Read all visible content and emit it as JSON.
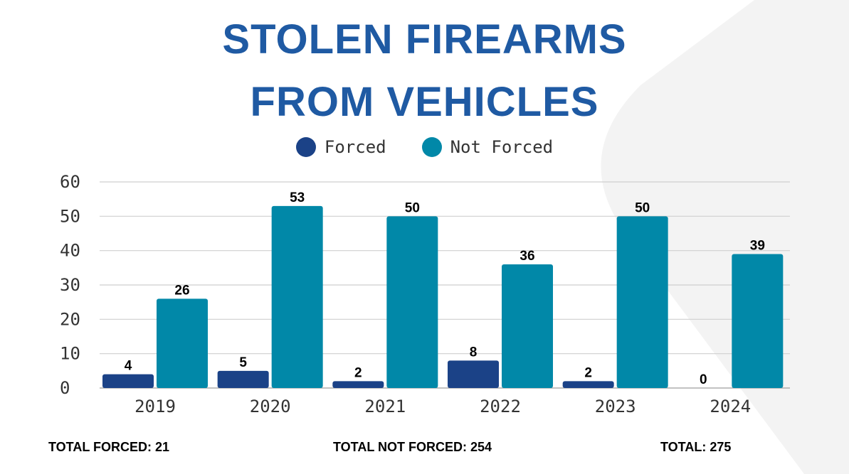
{
  "title_line1": "STOLEN FIREARMS",
  "title_line2": "FROM VEHICLES",
  "colors": {
    "forced": "#1b4287",
    "not_forced": "#0188a8",
    "title": "#1f5aa3"
  },
  "chart_data": {
    "type": "bar",
    "categories": [
      "2019",
      "2020",
      "2021",
      "2022",
      "2023",
      "2024"
    ],
    "series": [
      {
        "name": "Forced",
        "values": [
          4,
          5,
          2,
          8,
          2,
          0
        ]
      },
      {
        "name": "Not Forced",
        "values": [
          26,
          53,
          50,
          36,
          50,
          39
        ]
      }
    ],
    "ylim": [
      0,
      60
    ],
    "yticks": [
      0,
      10,
      20,
      30,
      40,
      50,
      60
    ],
    "grid": true,
    "legend": "top-center"
  },
  "totals": {
    "forced": "TOTAL FORCED: 21",
    "not_forced": "TOTAL NOT FORCED: 254",
    "total": "TOTAL: 275"
  }
}
